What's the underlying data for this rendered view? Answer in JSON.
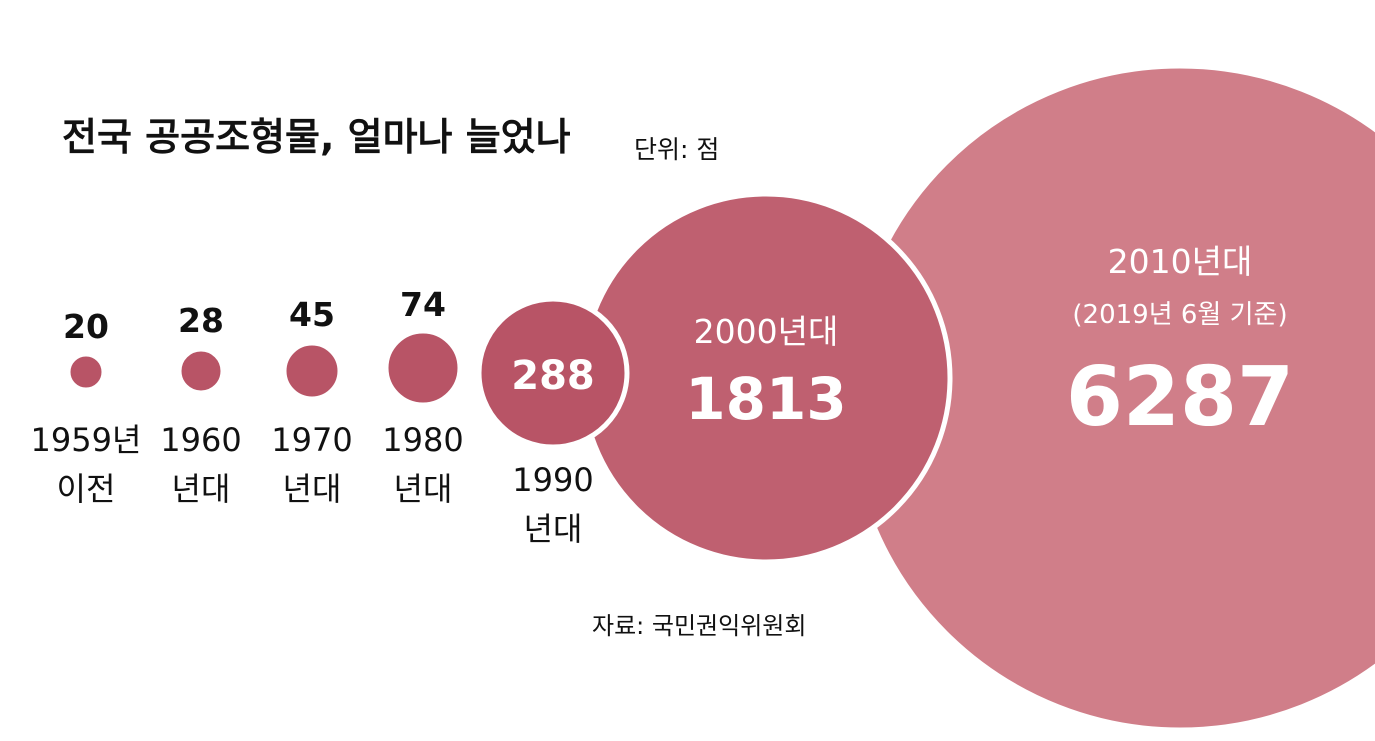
{
  "title": "전국 공공조형물, 얼마나 늘었나",
  "unit": "단위: 점",
  "source": "자료: 국민권익위원회",
  "colors": {
    "small": "#b85466",
    "mid": "#bf6070",
    "large": "#d07e89",
    "text_dark": "#111111",
    "text_light": "#ffffff"
  },
  "chart_data": {
    "type": "bubble",
    "title": "전국 공공조형물, 얼마나 늘었나",
    "unit": "점",
    "categories": [
      [
        "1959년",
        "이전"
      ],
      [
        "1960",
        "년대"
      ],
      [
        "1970",
        "년대"
      ],
      [
        "1980",
        "년대"
      ],
      [
        "1990",
        "년대"
      ],
      [
        "2000년대"
      ],
      [
        "2010년대",
        "(2019년 6월 기준)"
      ]
    ],
    "values": [
      20,
      28,
      45,
      74,
      288,
      1813,
      6287
    ]
  }
}
